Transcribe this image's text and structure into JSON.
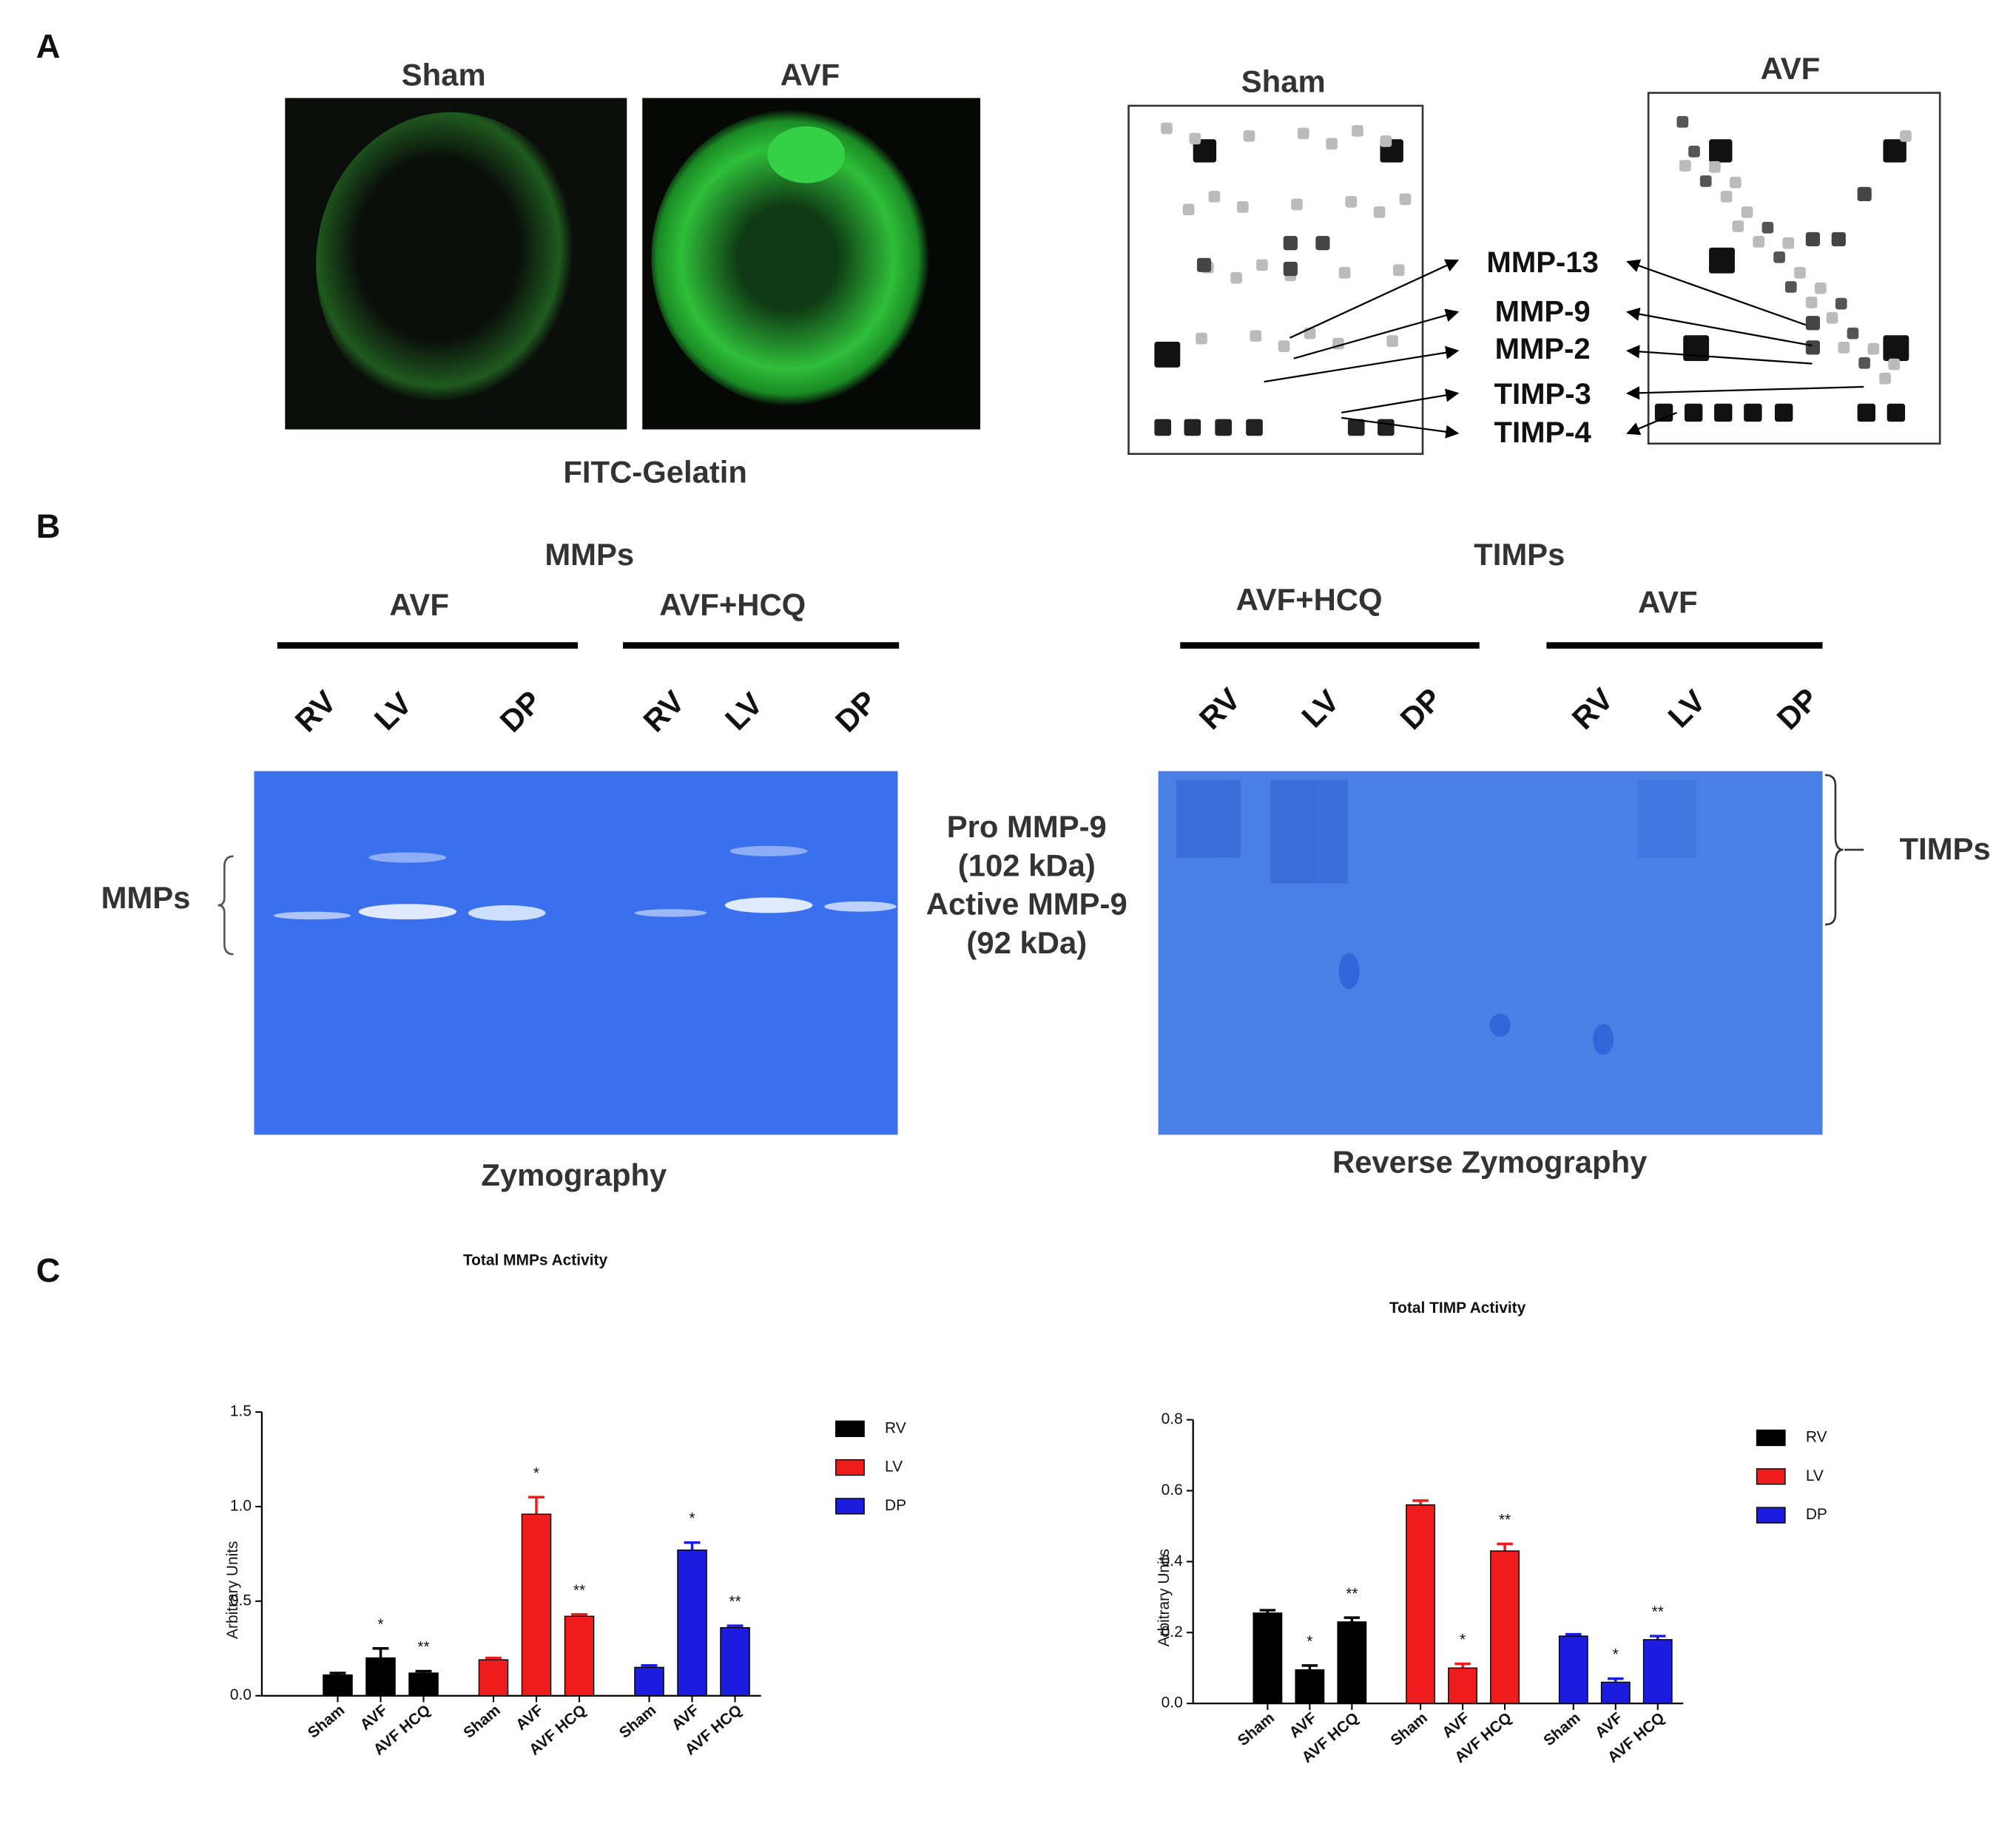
{
  "panel_labels": [
    "A",
    "B",
    "C"
  ],
  "panel_a": {
    "image_titles": [
      "Sham",
      "AVF"
    ],
    "image_caption": "FITC-Gelatin",
    "array_titles": [
      "Sham",
      "AVF"
    ],
    "array_labels": [
      "MMP-13",
      "MMP-9",
      "MMP-2",
      "TIMP-3",
      "TIMP-4"
    ]
  },
  "panel_b": {
    "left": {
      "title": "MMPs",
      "groups": [
        "AVF",
        "AVF+HCQ"
      ],
      "lanes": [
        "RV",
        "LV",
        "DP",
        "RV",
        "LV",
        "DP"
      ],
      "side_label": "MMPs",
      "caption": "Zymography"
    },
    "middle": [
      "Pro MMP-9",
      "(102 kDa)",
      "Active MMP-9",
      "(92 kDa)"
    ],
    "right": {
      "title": "TIMPs",
      "groups": [
        "AVF+HCQ",
        "AVF"
      ],
      "lanes": [
        "RV",
        "LV",
        "DP",
        "RV",
        "LV",
        "DP"
      ],
      "side_label": "TIMPs",
      "caption": "Reverse  Zymography"
    }
  },
  "chart_data": [
    {
      "type": "bar",
      "title": "Total MMPs Activity",
      "y_label": "Arbitrary Units",
      "categories": [
        "Sham",
        "AVF",
        "AVF HCQ",
        "Sham",
        "AVF",
        "AVF HCQ",
        "Sham",
        "AVF",
        "AVF HCQ"
      ],
      "ylim": [
        0,
        1.5
      ],
      "yticks": [
        {
          "value": 0,
          "label": "0.0"
        },
        {
          "value": 0.5,
          "label": "0.5"
        },
        {
          "value": 1,
          "label": "1.0"
        },
        {
          "value": 1.5,
          "label": "1.5"
        }
      ],
      "legend": "right",
      "series": [
        {
          "name": "RV",
          "color": "#000000",
          "values": [
            0.11,
            0.2,
            0.12,
            null,
            null,
            null,
            null,
            null,
            null
          ],
          "errors": [
            0.01,
            0.05,
            0.01,
            null,
            null,
            null,
            null,
            null,
            null
          ],
          "significance": [
            null,
            "*",
            "**",
            null,
            null,
            null,
            null,
            null,
            null
          ]
        },
        {
          "name": "LV",
          "color": "#ee1c1c",
          "values": [
            null,
            null,
            null,
            0.19,
            0.96,
            0.42,
            null,
            null,
            null
          ],
          "errors": [
            null,
            null,
            null,
            0.01,
            0.09,
            0.01,
            null,
            null,
            null
          ],
          "significance": [
            null,
            null,
            null,
            null,
            "*",
            "**",
            null,
            null,
            null
          ]
        },
        {
          "name": "DP",
          "color": "#1c1ce0",
          "values": [
            null,
            null,
            null,
            null,
            null,
            null,
            0.15,
            0.77,
            0.36
          ],
          "errors": [
            null,
            null,
            null,
            null,
            null,
            null,
            0.01,
            0.04,
            0.01
          ],
          "significance": [
            null,
            null,
            null,
            null,
            null,
            null,
            null,
            "*",
            "**"
          ]
        }
      ]
    },
    {
      "type": "bar",
      "title": "Total TIMP Activity",
      "y_label": "Arbitrary Units",
      "categories": [
        "Sham",
        "AVF",
        "AVF HCQ",
        "Sham",
        "AVF",
        "AVF HCQ",
        "Sham",
        "AVF",
        "AVF HCQ"
      ],
      "ylim": [
        0,
        0.8
      ],
      "yticks": [
        {
          "value": 0,
          "label": "0.0"
        },
        {
          "value": 0.2,
          "label": "0.2"
        },
        {
          "value": 0.4,
          "label": "0.4"
        },
        {
          "value": 0.6,
          "label": "0.6"
        },
        {
          "value": 0.8,
          "label": "0.8"
        }
      ],
      "legend": "right",
      "series": [
        {
          "name": "RV",
          "color": "#000000",
          "values": [
            0.255,
            0.095,
            0.23,
            null,
            null,
            null,
            null,
            null,
            null
          ],
          "errors": [
            0.008,
            0.012,
            0.012,
            null,
            null,
            null,
            null,
            null,
            null
          ],
          "significance": [
            null,
            "*",
            "**",
            null,
            null,
            null,
            null,
            null,
            null
          ]
        },
        {
          "name": "LV",
          "color": "#ee1c1c",
          "values": [
            null,
            null,
            null,
            0.56,
            0.1,
            0.43,
            null,
            null,
            null
          ],
          "errors": [
            null,
            null,
            null,
            0.012,
            0.012,
            0.02,
            null,
            null,
            null
          ],
          "significance": [
            null,
            null,
            null,
            null,
            "*",
            "**",
            null,
            null,
            null
          ]
        },
        {
          "name": "DP",
          "color": "#1c1ce0",
          "values": [
            null,
            null,
            null,
            null,
            null,
            null,
            0.19,
            0.06,
            0.18
          ],
          "errors": [
            null,
            null,
            null,
            null,
            null,
            null,
            0.005,
            0.01,
            0.01
          ],
          "significance": [
            null,
            null,
            null,
            null,
            null,
            null,
            null,
            "*",
            "**"
          ]
        }
      ]
    }
  ]
}
